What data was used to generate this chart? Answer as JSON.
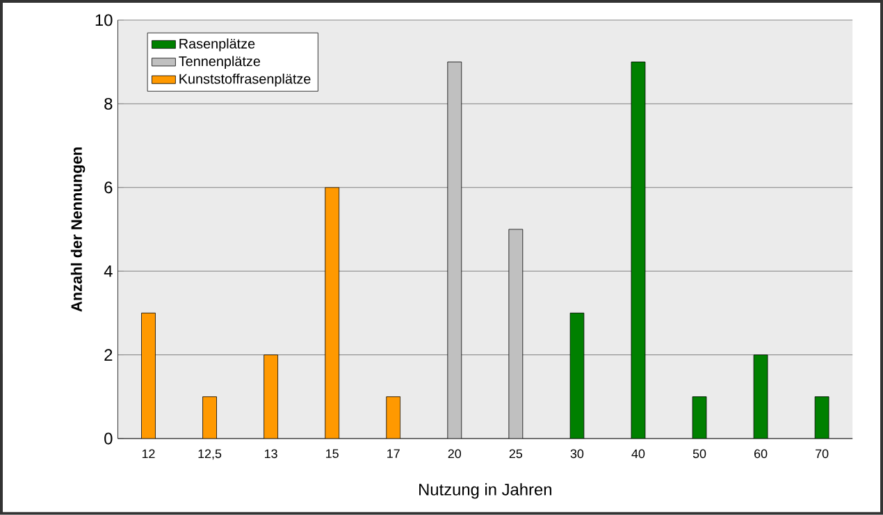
{
  "chart_data": {
    "type": "bar",
    "xlabel": "Nutzung in Jahren",
    "ylabel": "Anzahl der Nennungen",
    "categories": [
      "12",
      "12,5",
      "13",
      "15",
      "17",
      "20",
      "25",
      "30",
      "40",
      "50",
      "60",
      "70"
    ],
    "series": [
      {
        "name": "Rasenplätze",
        "color": "#008000",
        "values": [
          null,
          null,
          null,
          null,
          null,
          null,
          null,
          3,
          9,
          1,
          2,
          1
        ]
      },
      {
        "name": "Tennenplätze",
        "color": "#c0c0c0",
        "values": [
          null,
          null,
          null,
          null,
          null,
          9,
          5,
          null,
          null,
          null,
          null,
          null
        ]
      },
      {
        "name": "Kunststoffrasenplätze",
        "color": "#ff9900",
        "values": [
          3,
          1,
          2,
          6,
          1,
          null,
          null,
          null,
          null,
          null,
          null,
          null
        ]
      }
    ],
    "ylim": [
      0,
      10
    ],
    "yticks": [
      0,
      2,
      4,
      6,
      8,
      10
    ],
    "grid": "y",
    "legend": "top left"
  }
}
